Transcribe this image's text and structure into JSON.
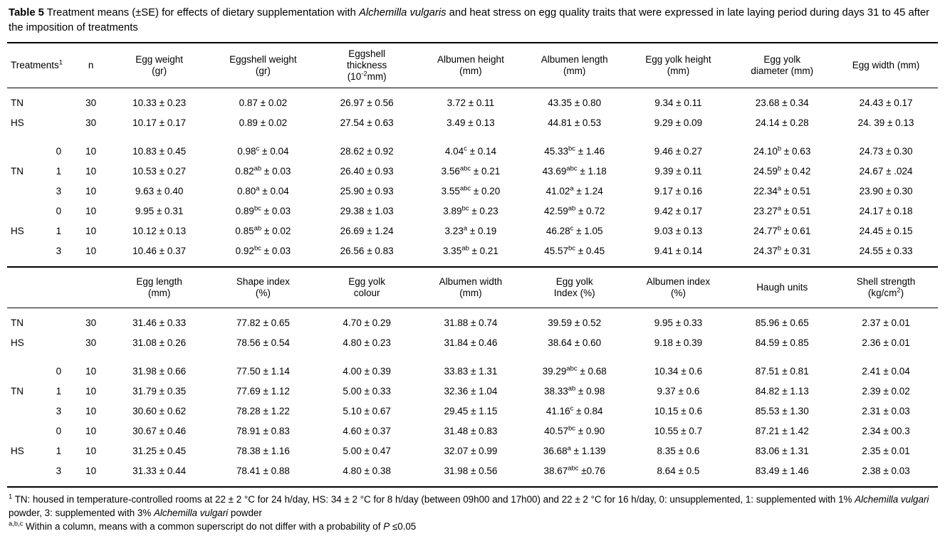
{
  "title": "**Table 5** Treatment means (±SE) for effects of dietary supplementation with *Alchemilla vulgaris* and heat stress on egg quality traits that were expressed in late laying period during days 31 to 45 after the imposition of treatments",
  "table1": {
    "headers": [
      "Treatments{1}",
      "n",
      "Egg weight\n(gr)",
      "Eggshell weight\n(gr)",
      "Eggshell\nthickness\n(10{-2}mm)",
      "Albumen height\n(mm)",
      "Albumen length\n(mm)",
      "Egg yolk height\n(mm)",
      "Egg yolk\ndiameter (mm)",
      "Egg width (mm)"
    ],
    "rows": [
      [
        "TN",
        "",
        "30",
        "10.33 ± 0.23",
        "0.87 ± 0.02",
        "26.97 ± 0.56",
        "3.72 ± 0.11",
        "43.35 ± 0.80",
        "9.34 ± 0.11",
        "23.68 ± 0.34",
        "24.43 ± 0.17"
      ],
      [
        "HS",
        "",
        "30",
        "10.17 ± 0.17",
        "0.89 ± 0.02",
        "27.54 ± 0.63",
        "3.49 ± 0.13",
        "44.81 ± 0.53",
        "9.29 ± 0.09",
        "24.14 ± 0.28",
        "24. 39 ± 0.13"
      ],
      [
        "",
        "0",
        "10",
        "10.83 ± 0.45",
        "0.98{c} ± 0.04",
        "28.62 ± 0.92",
        "4.04{c} ± 0.14",
        "45.33{bc} ± 1.46",
        "9.46 ± 0.27",
        "24.10{b} ± 0.63",
        "24.73 ± 0.30"
      ],
      [
        "TN",
        "1",
        "10",
        "10.53 ± 0.27",
        "0.82{ab} ± 0.03",
        "26.40 ± 0.93",
        "3.56{abc} ± 0.21",
        "43.69{abc} ± 1.18",
        "9.39 ± 0.11",
        "24.59{b} ± 0.42",
        "24.67 ± .024"
      ],
      [
        "",
        "3",
        "10",
        "9.63 ± 0.40",
        "0.80{a} ± 0.04",
        "25.90 ± 0.93",
        "3.55{abc} ± 0.20",
        "41.02{a} ± 1.24",
        "9.17 ± 0.16",
        "22.34{a} ± 0.51",
        "23.90 ± 0.30"
      ],
      [
        "",
        "0",
        "10",
        "9.95 ± 0.31",
        "0.89{bc} ± 0.03",
        "29.38 ± 1.03",
        "3.89{bc} ± 0.23",
        "42.59{ab} ± 0.72",
        "9.42 ± 0.17",
        "23.27{a} ± 0.51",
        "24.17 ± 0.18"
      ],
      [
        "HS",
        "1",
        "10",
        "10.12 ± 0.13",
        "0.85{ab} ± 0.02",
        "26.69 ± 1.24",
        "3.23{a} ± 0.19",
        "46.28{c} ± 1.05",
        "9.03 ± 0.13",
        "24.77{b} ± 0.61",
        "24.45 ± 0.15"
      ],
      [
        "",
        "3",
        "10",
        "10.46 ± 0.37",
        "0.92{bc} ± 0.03",
        "26.56 ± 0.83",
        "3.35{ab} ± 0.21",
        "45.57{bc} ± 0.45",
        "9.41 ± 0.14",
        "24.37{b} ± 0.31",
        "24.55 ± 0.33"
      ]
    ]
  },
  "table2": {
    "headers": [
      "Egg length\n(mm)",
      "Shape index\n(%)",
      "Egg yolk\ncolour",
      "Albumen width\n(mm)",
      "Egg yolk\nIndex (%)",
      "Albumen index\n(%)",
      "Haugh units",
      "Shell strength\n(kg/cm{2})"
    ],
    "rows": [
      [
        "TN",
        "",
        "30",
        "31.46 ± 0.33",
        "77.82 ± 0.65",
        "4.70 ± 0.29",
        "31.88 ± 0.74",
        "39.59 ± 0.52",
        "9.95 ± 0.33",
        "85.96 ± 0.65",
        "2.37 ± 0.01"
      ],
      [
        "HS",
        "",
        "30",
        "31.08 ± 0.26",
        "78.56 ± 0.54",
        "4.80 ± 0.23",
        "31.84 ± 0.46",
        "38.64 ± 0.60",
        "9.18 ± 0.39",
        "84.59 ± 0.85",
        "2.36 ± 0.01"
      ],
      [
        "",
        "0",
        "10",
        "31.98 ± 0.66",
        "77.50 ± 1.14",
        "4.00 ± 0.39",
        "33.83 ± 1.31",
        "39.29{abc} ± 0.68",
        "10.34 ± 0.6",
        "87.51 ± 0.81",
        "2.41 ± 0.04"
      ],
      [
        "TN",
        "1",
        "10",
        "31.79 ± 0.35",
        "77.69 ± 1.12",
        "5.00 ± 0.33",
        "32.36 ± 1.04",
        "38.33{ab} ± 0.98",
        "9.37 ± 0.6",
        "84.82 ± 1.13",
        "2.39 ± 0.02"
      ],
      [
        "",
        "3",
        "10",
        "30.60 ± 0.62",
        "78.28 ± 1.22",
        "5.10 ± 0.67",
        "29.45 ± 1.15",
        "41.16{c} ± 0.84",
        "10.15 ± 0.6",
        "85.53 ± 1.30",
        "2.31 ± 0.03"
      ],
      [
        "",
        "0",
        "10",
        "30.67 ± 0.46",
        "78.91 ± 0.83",
        "4.60 ± 0.37",
        "31.48 ± 0.83",
        "40.57{bc} ± 0.90",
        "10.55 ± 0.7",
        "87.21 ± 1.42",
        "2.34 ± 00.3"
      ],
      [
        "HS",
        "1",
        "10",
        "31.25 ± 0.45",
        "78.38 ± 1.16",
        "5.00 ± 0.47",
        "32.07 ± 0.99",
        "36.68{a} ± 1.139",
        "8.35 ± 0.6",
        "83.06 ± 1.31",
        "2.35 ± 0.01"
      ],
      [
        "",
        "3",
        "10",
        "31.33 ± 0.44",
        "78.41 ± 0.88",
        "4.80 ± 0.38",
        "31.98 ± 0.56",
        "38.67{abc} ±0.76",
        "8.64 ± 0.5",
        "83.49 ± 1.46",
        "2.38 ± 0.03"
      ]
    ]
  },
  "footnotes": [
    "{1} TN: housed in temperature-controlled rooms at 22 ± 2 °C for 24 h/day, HS: 34 ± 2 °C for 8 h/day (between 09h00 and 17h00) and 22 ± 2 °C for 16 h/day, 0: unsupplemented, 1: supplemented with 1% *Alchemilla vulgari* powder, 3: supplemented with 3% *Alchemilla vulgari* powder",
    "{a,b,c} Within a column, means with a common superscript do not differ with a probability of *P* ≤0.05"
  ]
}
